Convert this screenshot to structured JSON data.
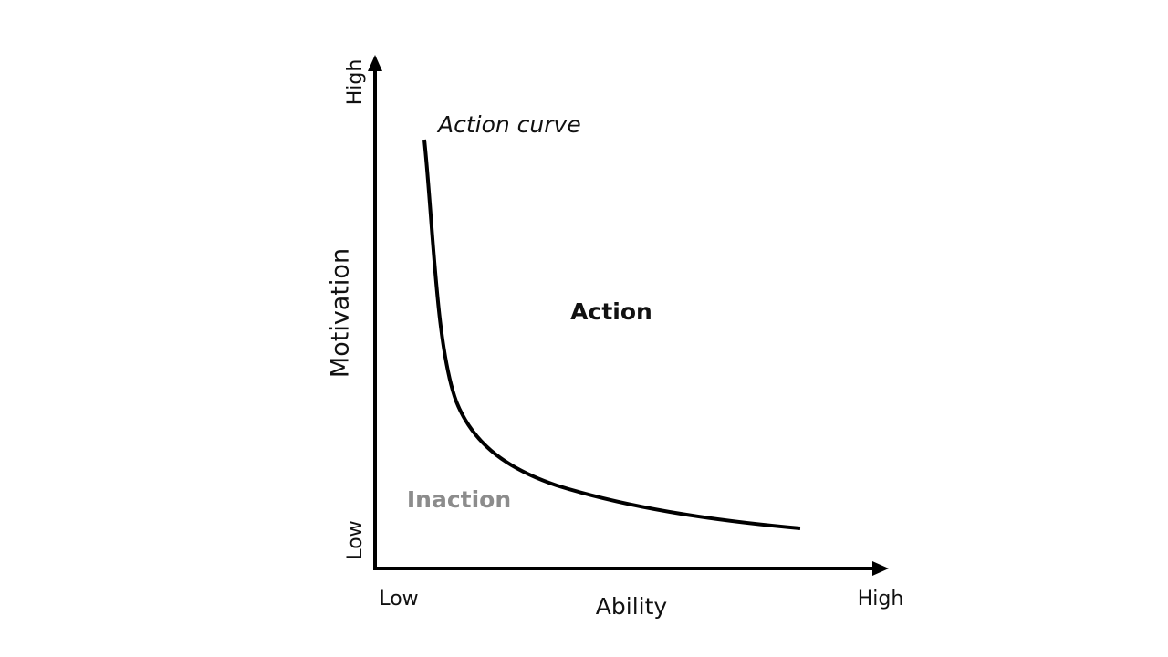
{
  "y_axis": {
    "label": "Motivation",
    "high": "High",
    "low": "Low"
  },
  "x_axis": {
    "label": "Ability",
    "low": "Low",
    "high": "High"
  },
  "curve": {
    "label": "Action curve"
  },
  "regions": {
    "above": "Action",
    "below": "Inaction"
  }
}
